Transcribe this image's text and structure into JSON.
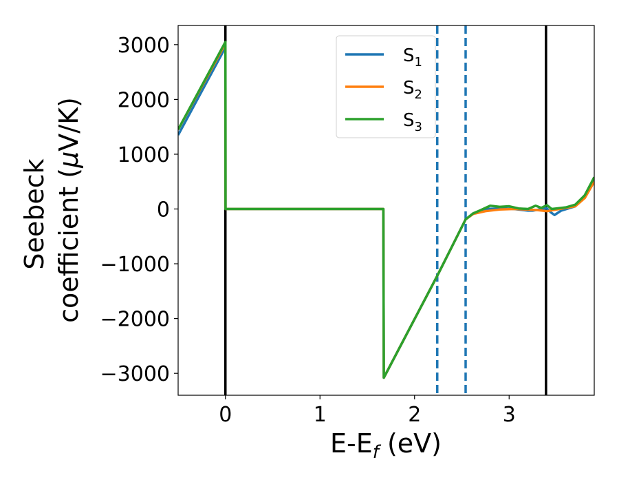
{
  "chart_data": {
    "type": "line",
    "xlabel": "E-E",
    "xlabel_sub": "f",
    "xlabel_units": " (eV)",
    "ylabel_line1": "Seebeck",
    "ylabel_line2": "coefficient  (",
    "ylabel_mu": "μ",
    "ylabel_line2_end": "V/K)",
    "xlim": [
      -0.5,
      3.9
    ],
    "ylim": [
      -3400,
      3350
    ],
    "xticks": [
      0,
      1,
      2,
      3
    ],
    "xtick_labels": [
      "0",
      "1",
      "2",
      "3"
    ],
    "yticks": [
      3000,
      2000,
      1000,
      0,
      -1000,
      -2000,
      -3000
    ],
    "ytick_labels": [
      "3000",
      "2000",
      "1000",
      "0",
      "−1000",
      "−2000",
      "−3000"
    ],
    "vertical_lines": [
      {
        "x": 0,
        "style": "solid",
        "color": "#000000"
      },
      {
        "x": 3.39,
        "style": "solid",
        "color": "#000000"
      },
      {
        "x": 2.24,
        "style": "dashed",
        "color": "#1f77b4"
      },
      {
        "x": 2.54,
        "style": "dashed",
        "color": "#1f77b4"
      }
    ],
    "legend": {
      "placement": "top-center"
    },
    "series": [
      {
        "name": "S",
        "name_sub": "1",
        "color": "#1f77b4",
        "x": [
          -0.5,
          0,
          0.001,
          1.67,
          1.675,
          2.24,
          2.54,
          2.62,
          2.75,
          2.9,
          3.05,
          3.15,
          3.2,
          3.25,
          3.3,
          3.36,
          3.4,
          3.44,
          3.48,
          3.55,
          3.7,
          3.8,
          3.9
        ],
        "values": [
          1350,
          2950,
          0,
          0,
          -3080,
          -1220,
          -190,
          -80,
          0,
          10,
          0,
          -20,
          -30,
          -30,
          -15,
          10,
          10,
          -60,
          -110,
          -30,
          50,
          250,
          560
        ]
      },
      {
        "name": "S",
        "name_sub": "2",
        "color": "#ff7f0e",
        "x": [
          -0.5,
          0,
          0.001,
          1.67,
          1.675,
          2.24,
          2.54,
          2.62,
          2.75,
          2.9,
          3.05,
          3.2,
          3.3,
          3.4,
          3.5,
          3.6,
          3.7,
          3.8,
          3.9
        ],
        "values": [
          1450,
          3020,
          0,
          0,
          -3080,
          -1220,
          -190,
          -90,
          -40,
          -10,
          0,
          -10,
          -20,
          -40,
          -10,
          20,
          50,
          200,
          500
        ]
      },
      {
        "name": "S",
        "name_sub": "3",
        "color": "#2ca02c",
        "x": [
          -0.5,
          0,
          0.001,
          1.67,
          1.675,
          2.24,
          2.54,
          2.62,
          2.7,
          2.8,
          2.9,
          3.0,
          3.1,
          3.2,
          3.28,
          3.34,
          3.4,
          3.45,
          3.5,
          3.6,
          3.7,
          3.8,
          3.9
        ],
        "values": [
          1450,
          3050,
          0,
          0,
          -3080,
          -1220,
          -190,
          -80,
          -20,
          60,
          40,
          50,
          10,
          0,
          60,
          20,
          70,
          0,
          10,
          30,
          80,
          250,
          580
        ]
      }
    ]
  }
}
